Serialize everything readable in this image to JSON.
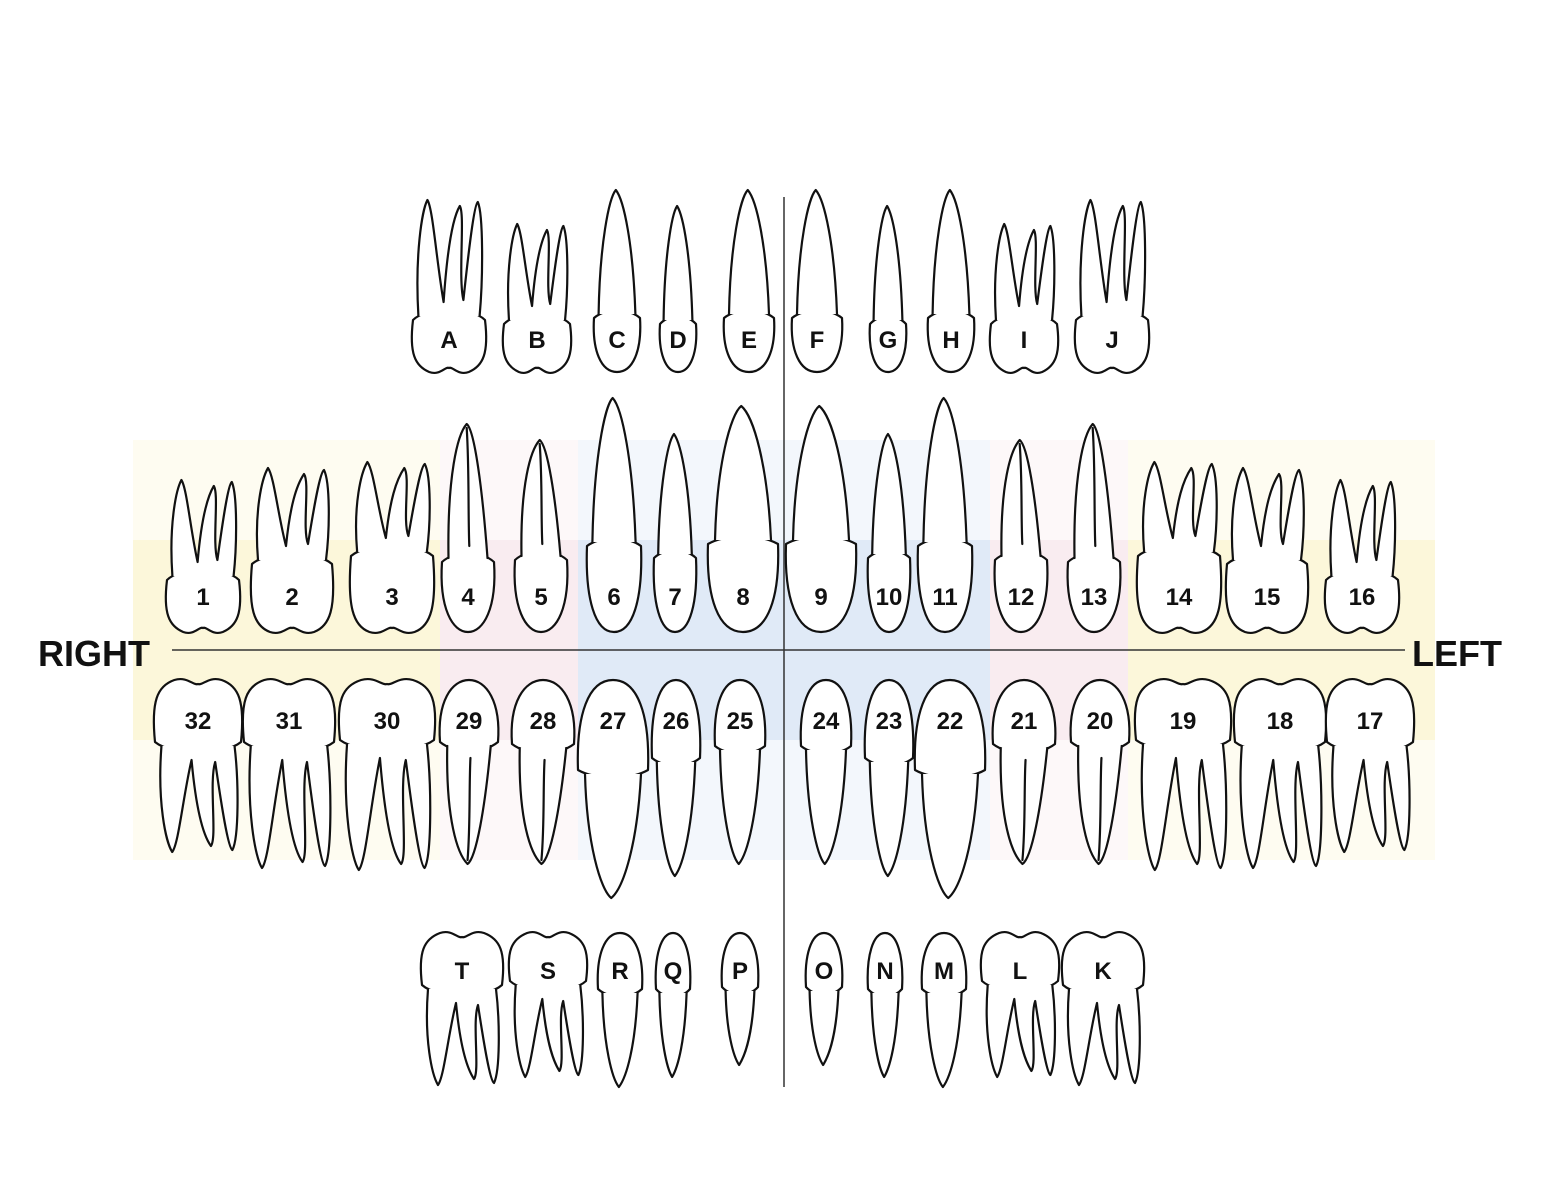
{
  "side_labels": {
    "right": "RIGHT",
    "left": "LEFT"
  },
  "colors": {
    "molar_zone": "#fbf6d6",
    "premolar_zone": "#f8eaee",
    "anterior_zone": "#dde8f7",
    "outline": "#111111",
    "midline": "#333333"
  },
  "zones": [
    "molar",
    "premolar",
    "anterior",
    "anterior",
    "premolar",
    "molar"
  ],
  "primary_upper": [
    {
      "label": "A",
      "kind": "molar"
    },
    {
      "label": "B",
      "kind": "molar"
    },
    {
      "label": "C",
      "kind": "canine"
    },
    {
      "label": "D",
      "kind": "incisor"
    },
    {
      "label": "E",
      "kind": "incisor"
    },
    {
      "label": "F",
      "kind": "incisor"
    },
    {
      "label": "G",
      "kind": "incisor"
    },
    {
      "label": "H",
      "kind": "canine"
    },
    {
      "label": "I",
      "kind": "molar"
    },
    {
      "label": "J",
      "kind": "molar"
    }
  ],
  "permanent_upper": [
    {
      "label": "1",
      "kind": "molar"
    },
    {
      "label": "2",
      "kind": "molar"
    },
    {
      "label": "3",
      "kind": "molar"
    },
    {
      "label": "4",
      "kind": "premolar"
    },
    {
      "label": "5",
      "kind": "premolar"
    },
    {
      "label": "6",
      "kind": "canine"
    },
    {
      "label": "7",
      "kind": "incisor"
    },
    {
      "label": "8",
      "kind": "incisor"
    },
    {
      "label": "9",
      "kind": "incisor"
    },
    {
      "label": "10",
      "kind": "incisor"
    },
    {
      "label": "11",
      "kind": "canine"
    },
    {
      "label": "12",
      "kind": "premolar"
    },
    {
      "label": "13",
      "kind": "premolar"
    },
    {
      "label": "14",
      "kind": "molar"
    },
    {
      "label": "15",
      "kind": "molar"
    },
    {
      "label": "16",
      "kind": "molar"
    }
  ],
  "permanent_lower": [
    {
      "label": "32",
      "kind": "molar"
    },
    {
      "label": "31",
      "kind": "molar"
    },
    {
      "label": "30",
      "kind": "molar"
    },
    {
      "label": "29",
      "kind": "premolar"
    },
    {
      "label": "28",
      "kind": "premolar"
    },
    {
      "label": "27",
      "kind": "canine"
    },
    {
      "label": "26",
      "kind": "incisor"
    },
    {
      "label": "25",
      "kind": "incisor"
    },
    {
      "label": "24",
      "kind": "incisor"
    },
    {
      "label": "23",
      "kind": "incisor"
    },
    {
      "label": "22",
      "kind": "canine"
    },
    {
      "label": "21",
      "kind": "premolar"
    },
    {
      "label": "20",
      "kind": "premolar"
    },
    {
      "label": "19",
      "kind": "molar"
    },
    {
      "label": "18",
      "kind": "molar"
    },
    {
      "label": "17",
      "kind": "molar"
    }
  ],
  "primary_lower": [
    {
      "label": "T",
      "kind": "molar"
    },
    {
      "label": "S",
      "kind": "molar"
    },
    {
      "label": "R",
      "kind": "canine"
    },
    {
      "label": "Q",
      "kind": "incisor"
    },
    {
      "label": "P",
      "kind": "incisor"
    },
    {
      "label": "O",
      "kind": "incisor"
    },
    {
      "label": "N",
      "kind": "incisor"
    },
    {
      "label": "M",
      "kind": "canine"
    },
    {
      "label": "L",
      "kind": "molar"
    },
    {
      "label": "K",
      "kind": "molar"
    }
  ]
}
